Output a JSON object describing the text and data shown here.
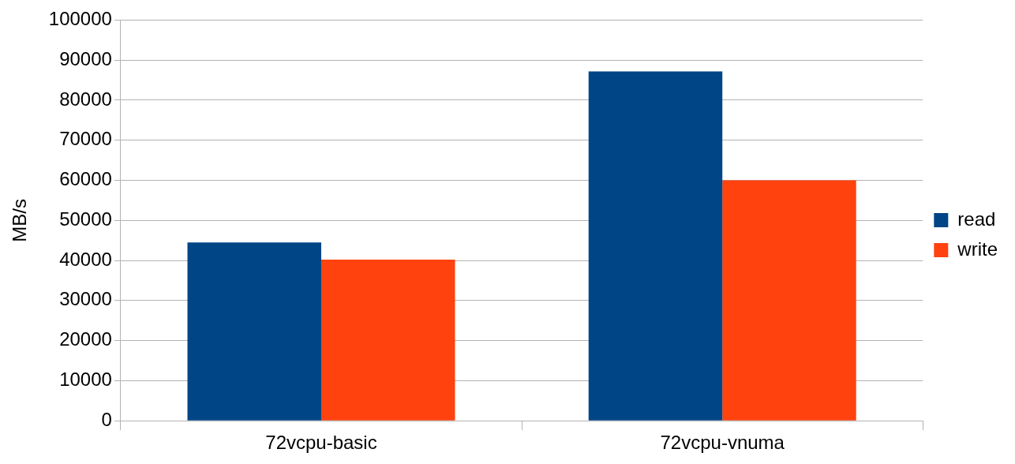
{
  "chart_data": {
    "type": "bar",
    "ylabel": "MB/s",
    "categories": [
      "72vcpu-basic",
      "72vcpu-vnuma"
    ],
    "series": [
      {
        "name": "read",
        "color": "#004586",
        "values": [
          44500,
          87200
        ]
      },
      {
        "name": "write",
        "color": "#ff420e",
        "values": [
          40200,
          60000
        ]
      }
    ],
    "ylim": [
      0,
      100000
    ],
    "yticks": [
      0,
      10000,
      20000,
      30000,
      40000,
      50000,
      60000,
      70000,
      80000,
      90000,
      100000
    ],
    "grid": "y",
    "legend": "right"
  }
}
